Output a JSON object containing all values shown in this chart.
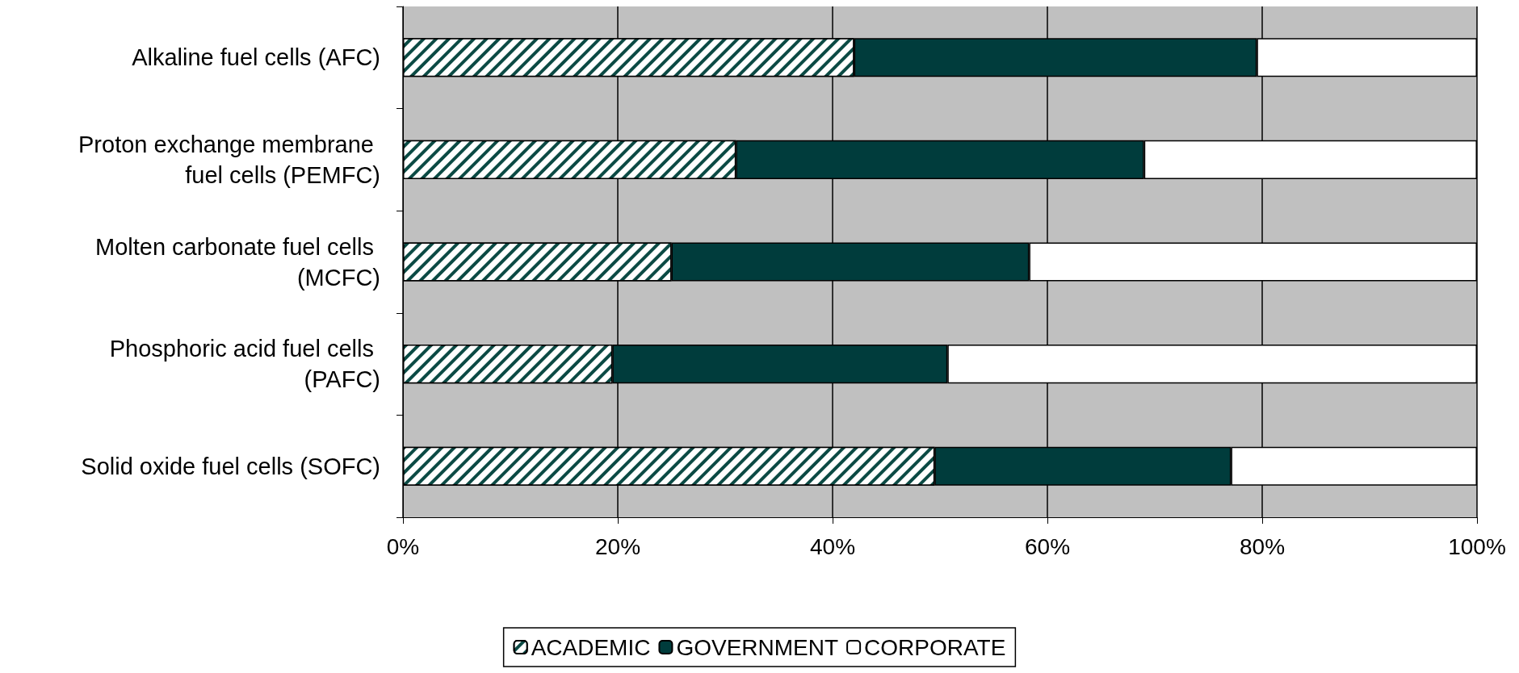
{
  "chart_data": {
    "type": "bar",
    "orientation": "horizontal",
    "stacked": true,
    "categories": [
      "Alkaline fuel cells (AFC)",
      "Proton exchange membrane fuel cells (PEMFC)",
      "Molten carbonate fuel cells (MCFC)",
      "Phosphoric acid fuel cells (PAFC)",
      "Solid oxide fuel cells (SOFC)"
    ],
    "series": [
      {
        "name": "ACADEMIC",
        "color": "#0b4a44",
        "values": [
          42,
          31,
          25,
          19.5,
          49.5
        ]
      },
      {
        "name": "GOVERNMENT",
        "color": "#003c3c",
        "values": [
          37.5,
          38,
          33.3,
          31.2,
          27.6
        ]
      },
      {
        "name": "CORPORATE",
        "color": "#ffffff",
        "values": [
          20.5,
          31,
          41.7,
          49.3,
          22.9
        ]
      }
    ],
    "xlim": [
      0,
      100
    ],
    "xticks": [
      {
        "value": 0,
        "label": "0%"
      },
      {
        "value": 20,
        "label": "20%"
      },
      {
        "value": 40,
        "label": "40%"
      },
      {
        "value": 60,
        "label": "60%"
      },
      {
        "value": 80,
        "label": "80%"
      },
      {
        "value": 100,
        "label": "100%"
      }
    ],
    "grid": "x",
    "legend": "bottom"
  }
}
